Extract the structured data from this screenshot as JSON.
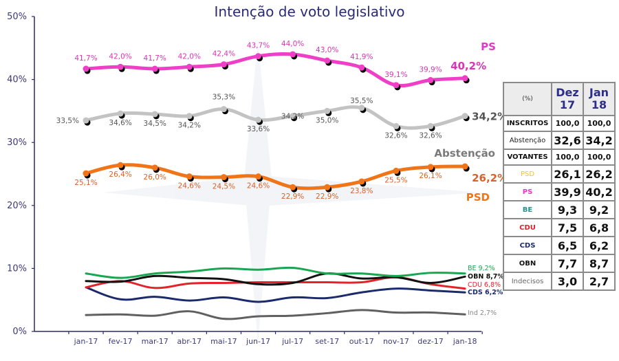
{
  "chart_data": {
    "type": "line",
    "title": "Intenção de voto legislativo",
    "xlabel": "",
    "ylabel": "",
    "ylim": [
      0,
      50
    ],
    "yticks": [
      "0%",
      "10%",
      "20%",
      "30%",
      "40%",
      "50%"
    ],
    "ytick_values": [
      0,
      10,
      20,
      30,
      40,
      50
    ],
    "grid": false,
    "categories": [
      "jan-17",
      "fev-17",
      "mar-17",
      "abr-17",
      "mai-17",
      "jun-17",
      "jul-17",
      "set-17",
      "out-17",
      "nov-17",
      "dez-17",
      "jan-18"
    ],
    "series": [
      {
        "name": "PS",
        "color": "#ee3fc6",
        "label_color": "#d936b5",
        "labeled": true,
        "label_pos": "above",
        "values": [
          41.7,
          42.0,
          41.7,
          42.0,
          42.4,
          43.7,
          44.0,
          43.0,
          41.9,
          39.1,
          39.9,
          40.2
        ],
        "labels": [
          "41,7%",
          "42,0%",
          "41,7%",
          "42,0%",
          "42,4%",
          "43,7%",
          "44,0%",
          "43,0%",
          "41,9%",
          "39,1%",
          "39,9%",
          "40,2%"
        ],
        "party_label": "PS"
      },
      {
        "name": "Abstenção",
        "color": "#c3c3c3",
        "label_color": "#555555",
        "labeled": true,
        "label_pos": "mixed",
        "values": [
          33.5,
          34.6,
          34.5,
          34.2,
          35.3,
          33.6,
          34.2,
          35.0,
          35.5,
          32.6,
          32.6,
          34.2
        ],
        "labels": [
          "33,5%",
          "34,6%",
          "34,5%",
          "34,2%",
          "35,3%",
          "33,6%",
          "34,2%",
          "35,0%",
          "35,5%",
          "32,6%",
          "32,6%",
          "34,2%"
        ],
        "party_label": "Abstenção"
      },
      {
        "name": "PSD",
        "color": "#f07418",
        "label_color": "#d7622a",
        "labeled": true,
        "label_pos": "below",
        "values": [
          25.1,
          26.4,
          26.0,
          24.6,
          24.5,
          24.6,
          22.9,
          22.9,
          23.8,
          25.5,
          26.1,
          26.2
        ],
        "labels": [
          "25,1%",
          "26,4%",
          "26,0%",
          "24,6%",
          "24,5%",
          "24,6%",
          "22,9%",
          "22,9%",
          "23,8%",
          "25,5%",
          "26,1%",
          "26,2%"
        ],
        "party_label": "PSD"
      },
      {
        "name": "BE",
        "color": "#1aa550",
        "labeled": false,
        "values": [
          9.2,
          8.5,
          9.2,
          9.5,
          10.0,
          9.8,
          10.1,
          9.2,
          9.2,
          8.8,
          9.3,
          9.2
        ],
        "end_label": "BE 9,2%"
      },
      {
        "name": "OBN",
        "color": "#111111",
        "labeled": false,
        "values": [
          8.0,
          7.9,
          8.8,
          8.5,
          8.3,
          7.5,
          7.7,
          9.2,
          8.4,
          8.6,
          7.7,
          8.7
        ],
        "end_label": "OBN 8,7%"
      },
      {
        "name": "CDU",
        "color": "#e3222a",
        "labeled": false,
        "values": [
          7.0,
          8.0,
          6.9,
          7.6,
          7.7,
          7.8,
          7.8,
          7.8,
          7.8,
          8.6,
          7.5,
          6.8
        ],
        "end_label": "CDU 6,8%"
      },
      {
        "name": "CDS",
        "color": "#1b2a6b",
        "labeled": false,
        "values": [
          7.0,
          5.1,
          5.5,
          4.9,
          5.4,
          4.7,
          5.4,
          5.3,
          6.2,
          6.8,
          6.5,
          6.2
        ],
        "end_label": "CDS 6,2%"
      },
      {
        "name": "Ind",
        "color": "#606060",
        "labeled": false,
        "values": [
          2.6,
          2.7,
          2.5,
          3.2,
          2.0,
          2.4,
          2.5,
          2.9,
          3.4,
          3.0,
          3.0,
          2.7
        ],
        "end_label": "Ind 2,7%"
      }
    ]
  },
  "table": {
    "corner": "(%)",
    "columns": [
      {
        "line1": "Dez",
        "line2": "17"
      },
      {
        "line1": "Jan",
        "line2": "18"
      }
    ],
    "rows": [
      {
        "label": "INSCRITOS",
        "color": "#111111",
        "bold": true,
        "values": [
          "100,0",
          "100,0"
        ],
        "small": true
      },
      {
        "label": "Abstenção",
        "color": "#222222",
        "bold": false,
        "values": [
          "32,6",
          "34,2"
        ],
        "small": false
      },
      {
        "label": "VOTANTES",
        "color": "#111111",
        "bold": true,
        "values": [
          "100,0",
          "100,0"
        ],
        "small": true
      },
      {
        "label": "PSD",
        "color": "#f2c12e",
        "bold": false,
        "values": [
          "26,1",
          "26,2"
        ],
        "small": false
      },
      {
        "label": "PS",
        "color": "#e03ac4",
        "bold": true,
        "values": [
          "39,9",
          "40,2"
        ],
        "small": false
      },
      {
        "label": "BE",
        "color": "#2a8f8f",
        "bold": true,
        "values": [
          "9,3",
          "9,2"
        ],
        "small": false
      },
      {
        "label": "CDU",
        "color": "#d9202a",
        "bold": true,
        "values": [
          "7,5",
          "6,8"
        ],
        "small": false
      },
      {
        "label": "CDS",
        "color": "#1b2a6b",
        "bold": true,
        "values": [
          "6,5",
          "6,2"
        ],
        "small": false
      },
      {
        "label": "OBN",
        "color": "#111111",
        "bold": true,
        "values": [
          "7,7",
          "8,7"
        ],
        "small": false
      },
      {
        "label": "Indecisos",
        "color": "#666666",
        "bold": false,
        "values": [
          "3,0",
          "2,7"
        ],
        "small": false
      }
    ]
  }
}
